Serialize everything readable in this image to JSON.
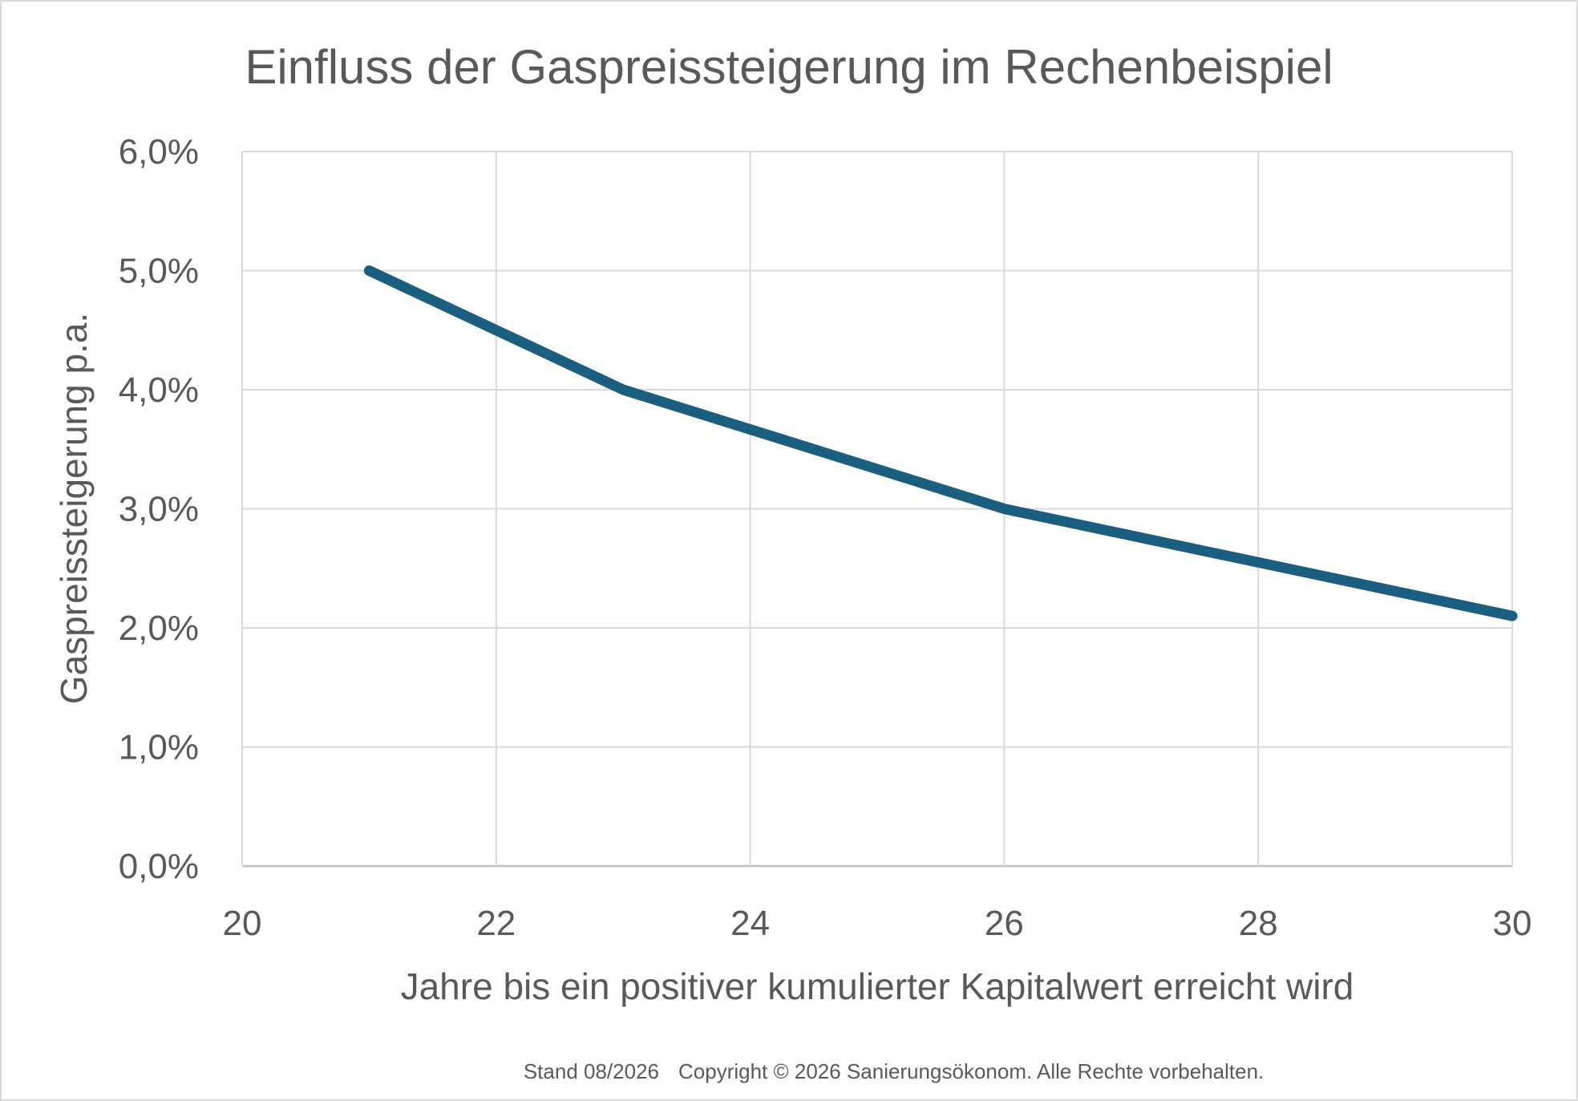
{
  "chart_data": {
    "type": "line",
    "title": "Einfluss der Gaspreissteigerung im Rechenbeispiel",
    "xlabel": "Jahre bis ein positiver kumulierter Kapitalwert erreicht wird",
    "ylabel": "Gaspreissteigerung p.a.",
    "xlim": [
      20,
      30
    ],
    "ylim": [
      0,
      0.06
    ],
    "x_ticks": [
      "20",
      "22",
      "24",
      "26",
      "28",
      "30"
    ],
    "y_ticks": [
      "0,0%",
      "1,0%",
      "2,0%",
      "3,0%",
      "4,0%",
      "5,0%",
      "6,0%"
    ],
    "grid": true,
    "series": [
      {
        "color": "#1a5e80",
        "x": [
          21,
          23,
          26,
          30
        ],
        "y": [
          0.05,
          0.04,
          0.03,
          0.021
        ]
      }
    ]
  },
  "footer": {
    "stand": "Stand 08/2026",
    "copyright": "Copyright © 2026 Sanierungsökonom. Alle Rechte vorbehalten."
  }
}
